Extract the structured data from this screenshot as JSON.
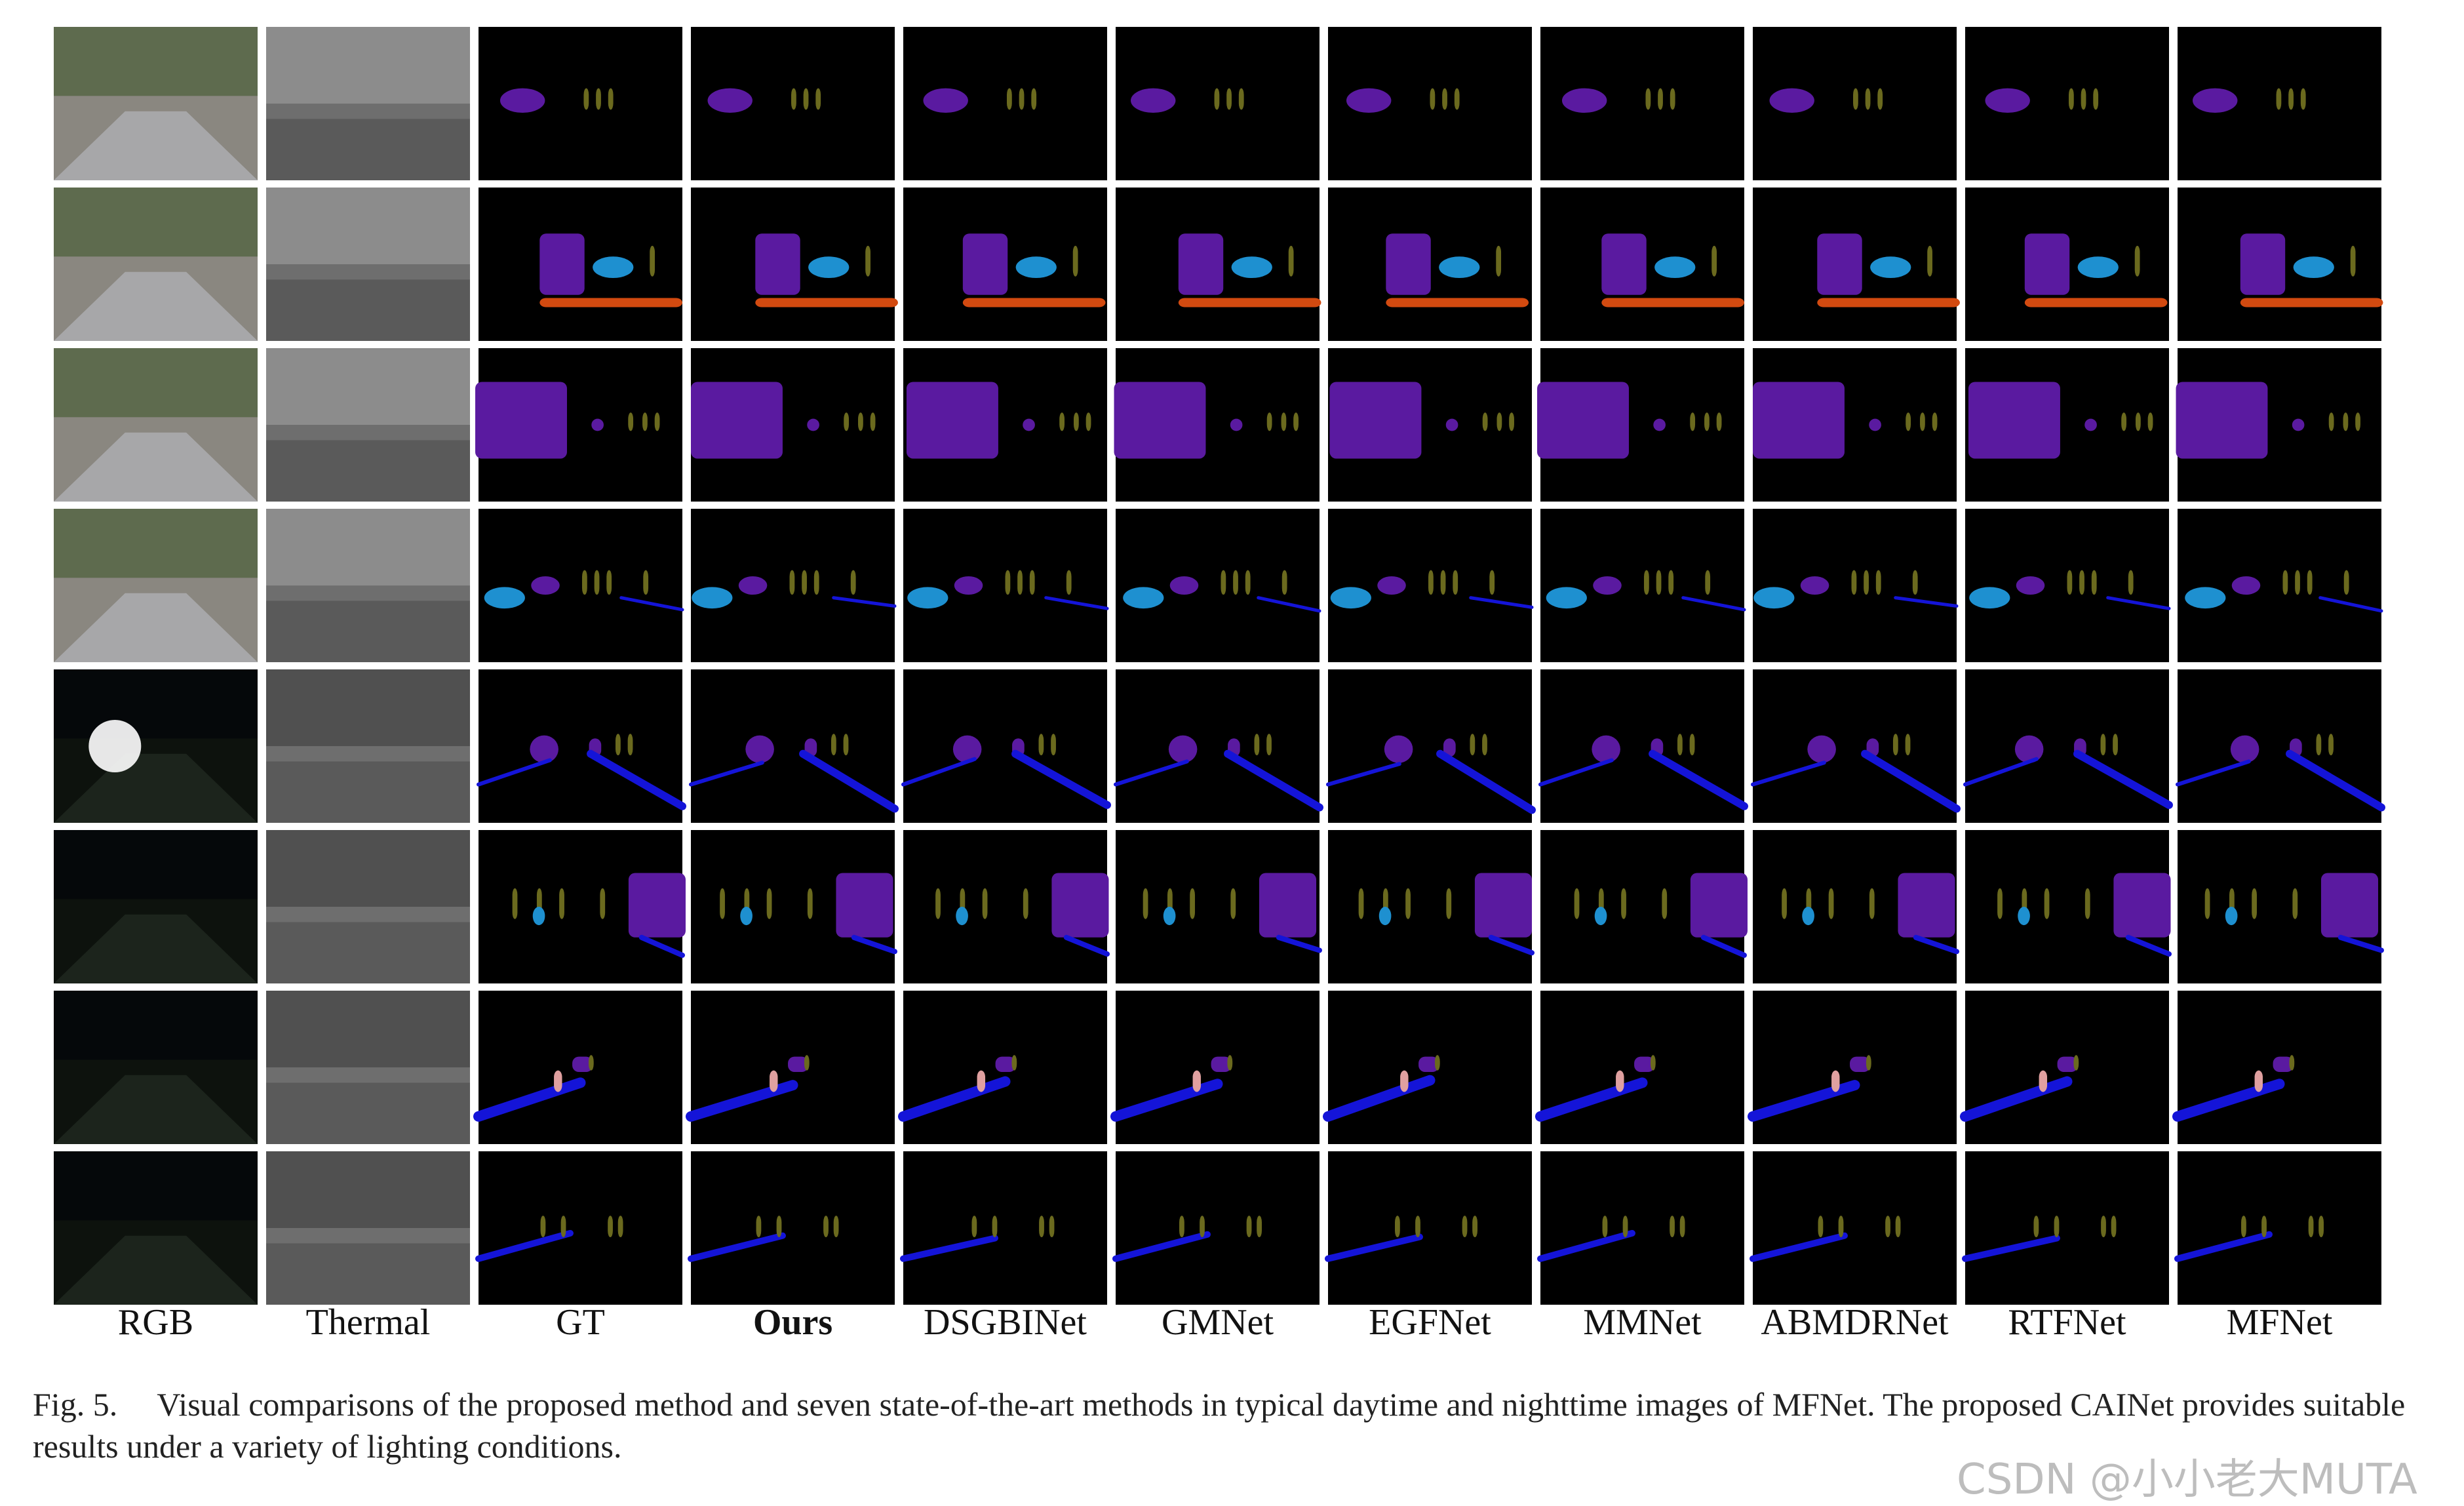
{
  "figure": {
    "columns": [
      "RGB",
      "Thermal",
      "GT",
      "Ours",
      "DSGBINet",
      "GMNet",
      "EGFNet",
      "MMNet",
      "ABMDRNet",
      "RTFNet",
      "MFNet"
    ],
    "caption": {
      "label": "Fig. 5.",
      "text": "Visual comparisons of the proposed method and seven state-of-the-art methods in typical daytime and nighttime images of MFNet. The proposed CAINet provides suitable results under a variety of lighting conditions."
    },
    "watermark": "CSDN @小小老大MUTA"
  }
}
